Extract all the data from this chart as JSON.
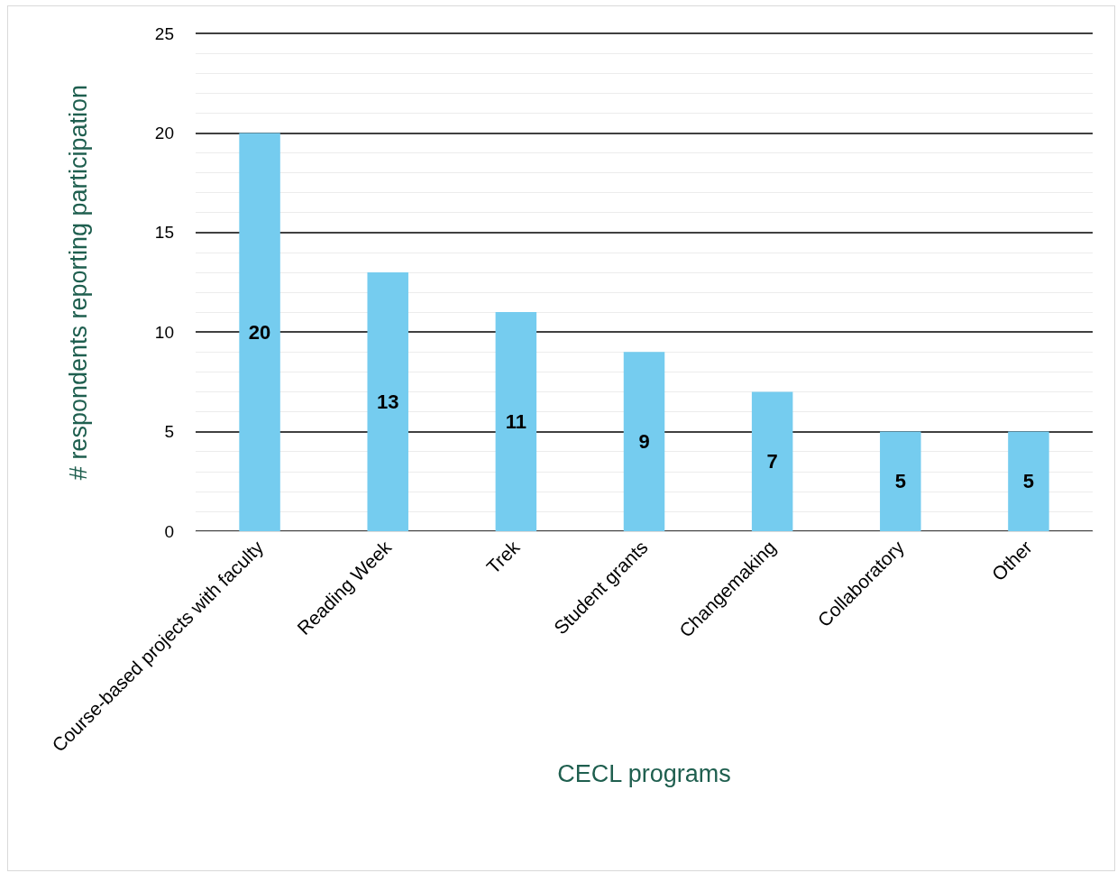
{
  "chart_data": {
    "type": "bar",
    "xlabel": "CECL programs",
    "ylabel": "# respondents reporting participation",
    "categories": [
      "Course-based projects with faculty",
      "Reading Week",
      "Trek",
      "Student grants",
      "Changemaking",
      "Collaboratory",
      "Other"
    ],
    "values": [
      20,
      13,
      11,
      9,
      7,
      5,
      5
    ],
    "color": "#75ccef",
    "ylim": [
      0,
      25
    ],
    "yticks": [
      0,
      5,
      10,
      15,
      20,
      25
    ],
    "grid": "y",
    "data_labels": true
  }
}
